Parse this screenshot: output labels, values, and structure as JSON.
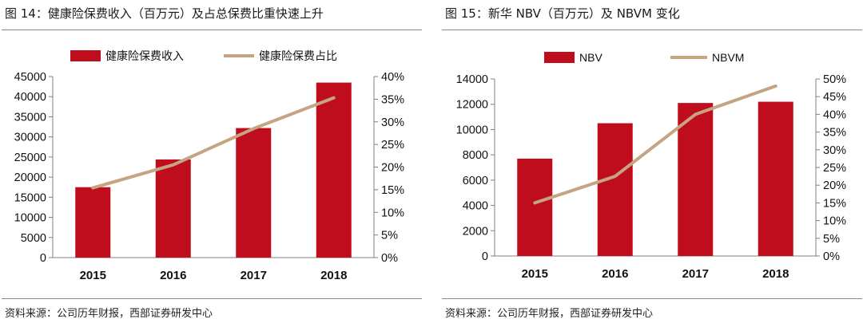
{
  "figures": [
    {
      "title": "图 14：健康险保费收入（百万元）及占总保费比重快速上升",
      "source": "资料来源：公司历年财报，西部证券研发中心"
    },
    {
      "title": "图 15：新华 NBV（百万元）及 NBVM 变化",
      "source": "资料来源：公司历年财报，西部证券研发中心"
    }
  ],
  "colors": {
    "bar": "#c00d1e",
    "line": "#c4a483",
    "axis": "#7f7f7f"
  },
  "chart_data": [
    {
      "type": "bar",
      "title": "健康险保费收入（百万元）及占总保费比重快速上升",
      "categories": [
        "2015",
        "2016",
        "2017",
        "2018"
      ],
      "series": [
        {
          "name": "健康险保费收入",
          "type": "bar",
          "axis": "left",
          "values": [
            17500,
            24400,
            32200,
            43500
          ]
        },
        {
          "name": "健康险保费占比",
          "type": "line",
          "axis": "right",
          "values": [
            0.154,
            0.205,
            0.285,
            0.353
          ]
        }
      ],
      "ylim": [
        0,
        45000
      ],
      "yticks": [
        0,
        5000,
        10000,
        15000,
        20000,
        25000,
        30000,
        35000,
        40000,
        45000
      ],
      "y2lim": [
        0,
        0.4
      ],
      "y2ticks": [
        0,
        0.05,
        0.1,
        0.15,
        0.2,
        0.25,
        0.3,
        0.35,
        0.4
      ],
      "y2tick_labels": [
        "0%",
        "5%",
        "10%",
        "15%",
        "20%",
        "25%",
        "30%",
        "35%",
        "40%"
      ],
      "legend_position": "top"
    },
    {
      "type": "bar",
      "title": "新华 NBV（百万元）及 NBVM 变化",
      "categories": [
        "2015",
        "2016",
        "2017",
        "2018"
      ],
      "series": [
        {
          "name": "NBV",
          "type": "bar",
          "axis": "left",
          "values": [
            7700,
            10500,
            12100,
            12200
          ]
        },
        {
          "name": "NBVM",
          "type": "line",
          "axis": "right",
          "values": [
            0.15,
            0.225,
            0.4,
            0.48
          ]
        }
      ],
      "ylim": [
        0,
        14000
      ],
      "yticks": [
        0,
        2000,
        4000,
        6000,
        8000,
        10000,
        12000,
        14000
      ],
      "y2lim": [
        0,
        0.5
      ],
      "y2ticks": [
        0,
        0.05,
        0.1,
        0.15,
        0.2,
        0.25,
        0.3,
        0.35,
        0.4,
        0.45,
        0.5
      ],
      "y2tick_labels": [
        "0%",
        "5%",
        "10%",
        "15%",
        "20%",
        "25%",
        "30%",
        "35%",
        "40%",
        "45%",
        "50%"
      ],
      "legend_position": "top"
    }
  ]
}
